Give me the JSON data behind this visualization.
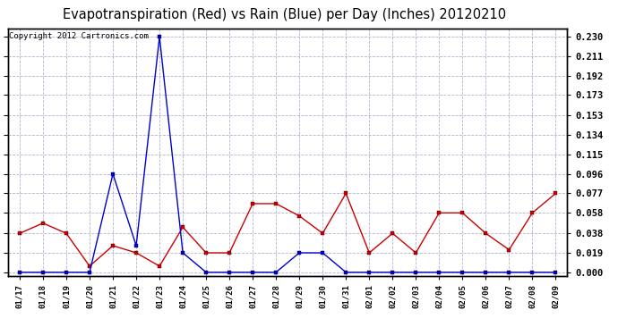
{
  "title": "Evapotranspiration (Red) vs Rain (Blue) per Day (Inches) 20120210",
  "copyright_text": "Copyright 2012 Cartronics.com",
  "x_labels": [
    "01/17",
    "01/18",
    "01/19",
    "01/20",
    "01/21",
    "01/22",
    "01/23",
    "01/24",
    "01/25",
    "01/26",
    "01/27",
    "01/28",
    "01/29",
    "01/30",
    "01/31",
    "02/01",
    "02/02",
    "02/03",
    "02/04",
    "02/05",
    "02/06",
    "02/07",
    "02/08",
    "02/09"
  ],
  "red_data": [
    0.038,
    0.048,
    0.038,
    0.006,
    0.026,
    0.019,
    0.006,
    0.044,
    0.019,
    0.019,
    0.067,
    0.067,
    0.055,
    0.038,
    0.077,
    0.019,
    0.038,
    0.019,
    0.058,
    0.058,
    0.038,
    0.022,
    0.058,
    0.077
  ],
  "blue_data": [
    0.0,
    0.0,
    0.0,
    0.0,
    0.096,
    0.026,
    0.23,
    0.019,
    0.0,
    0.0,
    0.0,
    0.0,
    0.019,
    0.019,
    0.0,
    0.0,
    0.0,
    0.0,
    0.0,
    0.0,
    0.0,
    0.0,
    0.0,
    0.0
  ],
  "y_ticks": [
    0.0,
    0.019,
    0.038,
    0.058,
    0.077,
    0.096,
    0.115,
    0.134,
    0.153,
    0.173,
    0.192,
    0.211,
    0.23
  ],
  "red_color": "#cc0000",
  "blue_color": "#0000cc",
  "background_color": "#ffffff",
  "grid_color": "#aaaacc",
  "title_fontsize": 10.5,
  "copyright_fontsize": 6.5,
  "ylim_min": -0.004,
  "ylim_max": 0.238
}
